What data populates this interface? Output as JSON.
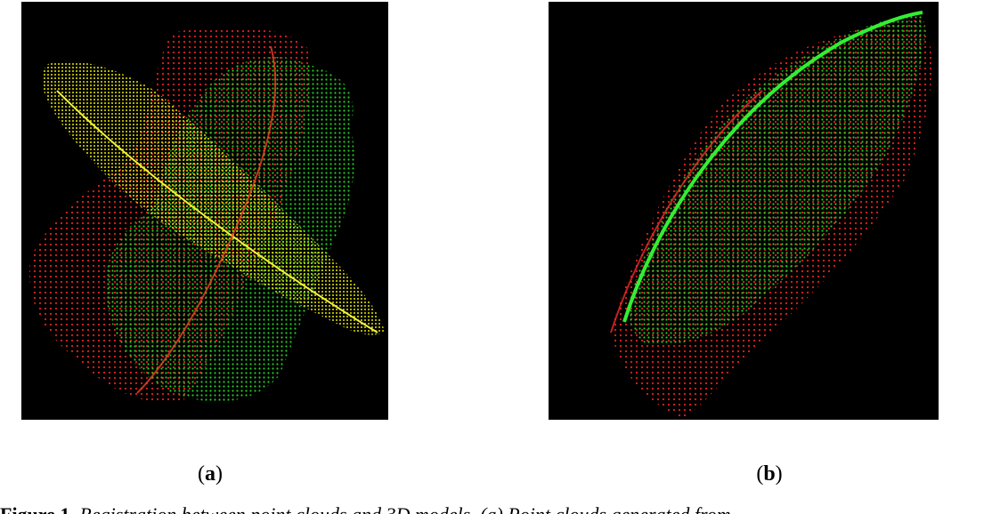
{
  "figure": {
    "panels": [
      {
        "id": "a",
        "label": "a",
        "clouds": [
          "yellow",
          "green",
          "red"
        ]
      },
      {
        "id": "b",
        "label": "b",
        "clouds": [
          "green",
          "red"
        ]
      }
    ],
    "colors": {
      "background": "#000000",
      "yellow": "#e6e600",
      "green": "#22cc22",
      "red": "#e61e1e"
    },
    "caption": {
      "lead": "Figure 1.",
      "text": "Registration between point clouds and 3D models. (a) Point clouds generated from"
    }
  }
}
